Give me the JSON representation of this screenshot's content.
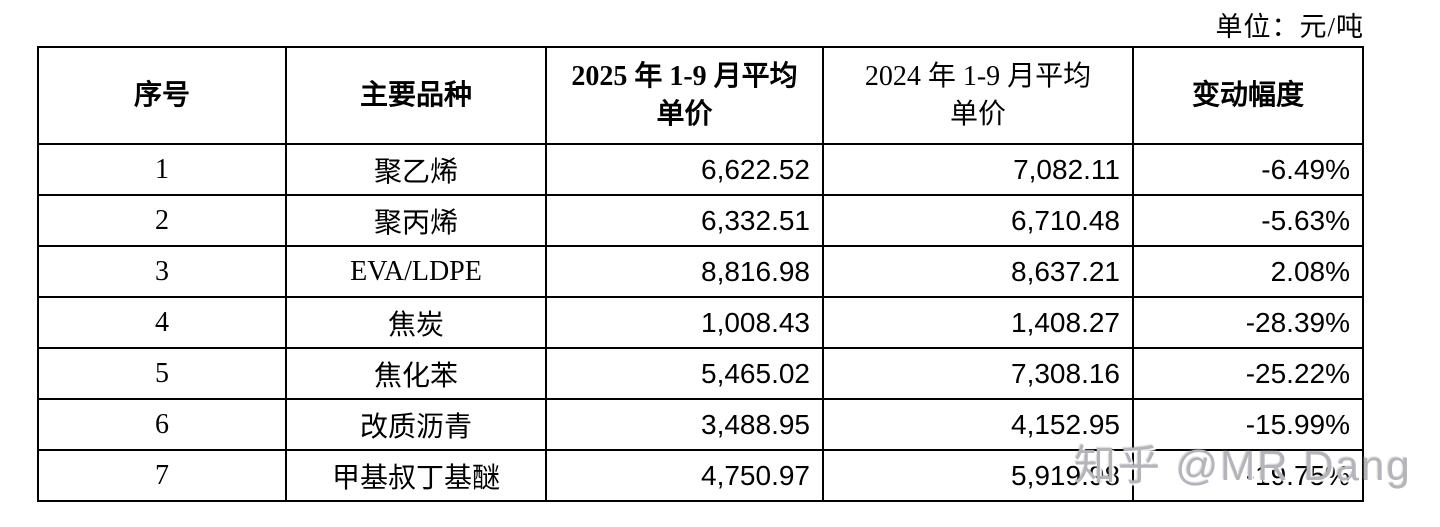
{
  "unit_label": "单位：元/吨",
  "watermark": "知乎 @MR Dang",
  "colors": {
    "background": "#ffffff",
    "border": "#000000",
    "text": "#000000",
    "watermark": "#b4b4b9"
  },
  "table": {
    "headers": [
      "序号",
      "主要品种",
      "2025 年 1-9 月平均单价",
      "2024 年 1-9 月平均单价",
      "变动幅度"
    ],
    "rows": [
      {
        "no": "1",
        "product": "聚乙烯",
        "price_2025": "6,622.52",
        "price_2024": "7,082.11",
        "change": "-6.49%"
      },
      {
        "no": "2",
        "product": "聚丙烯",
        "price_2025": "6,332.51",
        "price_2024": "6,710.48",
        "change": "-5.63%"
      },
      {
        "no": "3",
        "product": "EVA/LDPE",
        "price_2025": "8,816.98",
        "price_2024": "8,637.21",
        "change": "2.08%"
      },
      {
        "no": "4",
        "product": "焦炭",
        "price_2025": "1,008.43",
        "price_2024": "1,408.27",
        "change": "-28.39%"
      },
      {
        "no": "5",
        "product": "焦化苯",
        "price_2025": "5,465.02",
        "price_2024": "7,308.16",
        "change": "-25.22%"
      },
      {
        "no": "6",
        "product": "改质沥青",
        "price_2025": "3,488.95",
        "price_2024": "4,152.95",
        "change": "-15.99%"
      },
      {
        "no": "7",
        "product": "甲基叔丁基醚",
        "price_2025": "4,750.97",
        "price_2024": "5,919.98",
        "change": "-19.75%"
      }
    ]
  }
}
